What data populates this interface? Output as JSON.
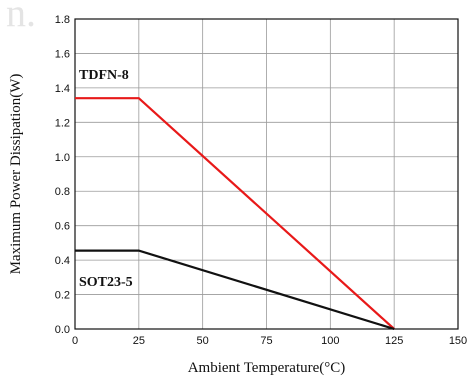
{
  "watermark_text": "n.",
  "chart_data": {
    "type": "line",
    "xlabel": "Ambient Temperature(°C)",
    "ylabel": "Maximum Power Dissipation(W)",
    "xlim": [
      0,
      150
    ],
    "ylim": [
      0,
      1.8
    ],
    "xticks": [
      0,
      25,
      50,
      75,
      100,
      125,
      150
    ],
    "yticks": [
      "0.0",
      "0.2",
      "0.4",
      "0.6",
      "0.8",
      "1.0",
      "1.2",
      "1.4",
      "1.6",
      "1.8"
    ],
    "grid": true,
    "series": [
      {
        "name": "TDFN-8",
        "color": "#e81919",
        "x": [
          0,
          25,
          125
        ],
        "y": [
          1.34,
          1.34,
          0
        ]
      },
      {
        "name": "SOT23-5",
        "color": "#111111",
        "x": [
          0,
          25,
          125
        ],
        "y": [
          0.455,
          0.455,
          0
        ]
      }
    ]
  }
}
